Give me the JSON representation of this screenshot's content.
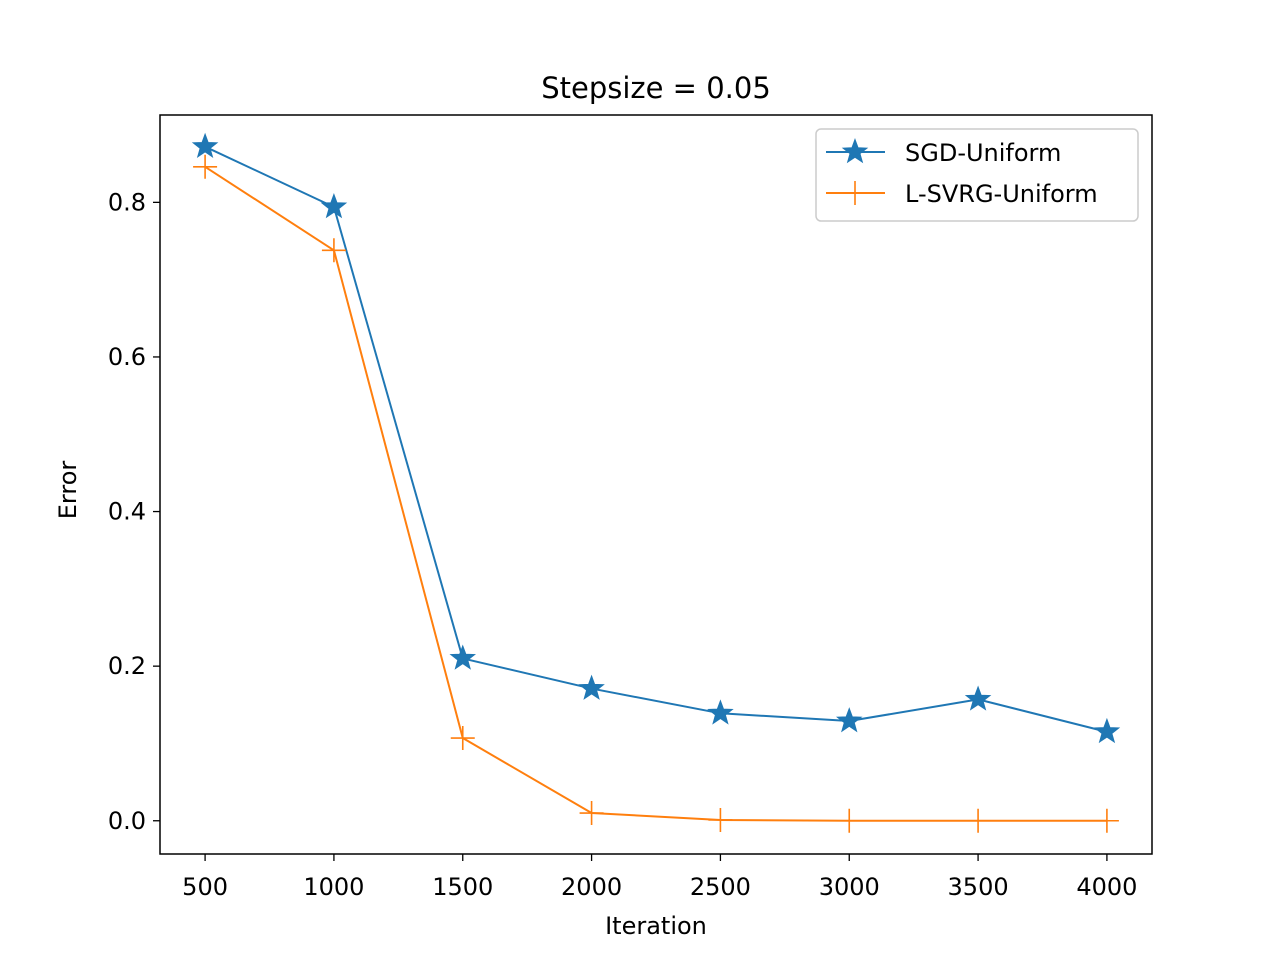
{
  "chart_data": {
    "type": "line",
    "title": "Stepsize = 0.05",
    "xlabel": "Iteration",
    "ylabel": "Error",
    "x": [
      500,
      1000,
      1500,
      2000,
      2500,
      3000,
      3500,
      4000
    ],
    "xticks": [
      500,
      1000,
      1500,
      2000,
      2500,
      3000,
      3500,
      4000
    ],
    "yticks": [
      0.0,
      0.2,
      0.4,
      0.6,
      0.8
    ],
    "ytick_labels": [
      "0.0",
      "0.2",
      "0.4",
      "0.6",
      "0.8"
    ],
    "xlim": [
      325,
      4175
    ],
    "ylim": [
      -0.043,
      0.913
    ],
    "grid": false,
    "legend_position": "top-right",
    "series": [
      {
        "name": "SGD-Uniform",
        "color": "#1f77b4",
        "marker": "star",
        "values": [
          0.872,
          0.794,
          0.21,
          0.171,
          0.139,
          0.129,
          0.157,
          0.115
        ]
      },
      {
        "name": "L-SVRG-Uniform",
        "color": "#ff7f0e",
        "marker": "plus",
        "values": [
          0.846,
          0.738,
          0.107,
          0.01,
          0.001,
          0.0,
          0.0,
          0.0
        ]
      }
    ]
  }
}
